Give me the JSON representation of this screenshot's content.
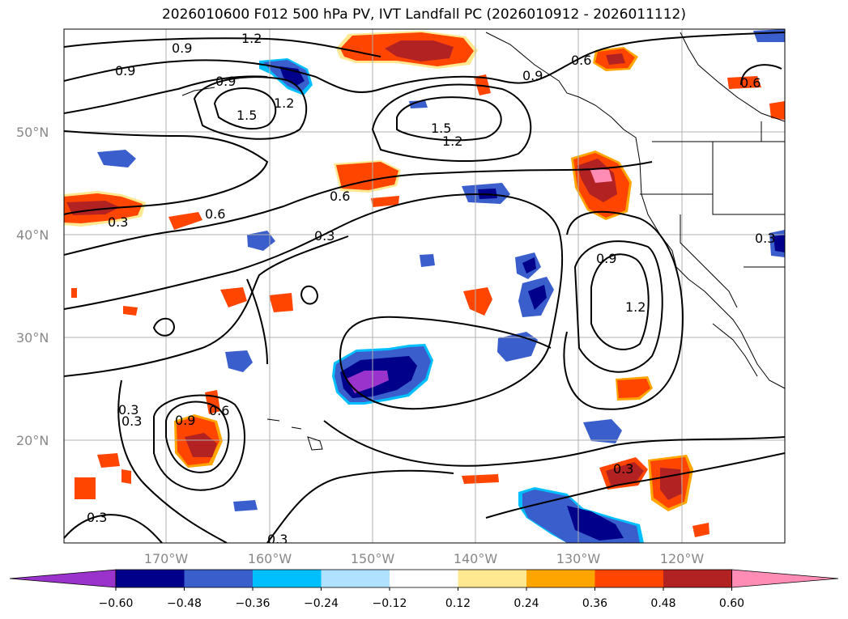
{
  "title": "2026010600 F012 500 hPa PV, IVT Landfall PC (2026010912 - 2026011112)",
  "map": {
    "lat_labels": [
      "50°N",
      "40°N",
      "30°N",
      "20°N"
    ],
    "lon_labels": [
      "170°W",
      "160°W",
      "150°W",
      "140°W",
      "130°W",
      "120°W"
    ],
    "contour_labels": [
      "1.2",
      "0.9",
      "0.9",
      "0.9",
      "1.5",
      "1.2",
      "1.5",
      "1.2",
      "0.9",
      "0.6",
      "0.6",
      "0.3",
      "0.6",
      "0.3",
      "0.9",
      "1.2",
      "0.9",
      "0.6",
      "0.3",
      "0.3",
      "0.3",
      "0.3",
      "0.3",
      "0.6",
      "0.3"
    ]
  },
  "colorbar": {
    "tick_labels": [
      "−0.60",
      "−0.48",
      "−0.36",
      "−0.24",
      "−0.12",
      "0.12",
      "0.24",
      "0.36",
      "0.48",
      "0.60"
    ],
    "colors": [
      "#9933cc",
      "#00008b",
      "#3a5fcd",
      "#00bfff",
      "#b0e2ff",
      "#ffffff",
      "#ffe890",
      "#ffa500",
      "#ff4500",
      "#b22222",
      "#ff8cb4"
    ]
  },
  "colors": {
    "grid": "#b0b0b0",
    "contour": "#000000",
    "lat_lon_text": "#888888"
  }
}
